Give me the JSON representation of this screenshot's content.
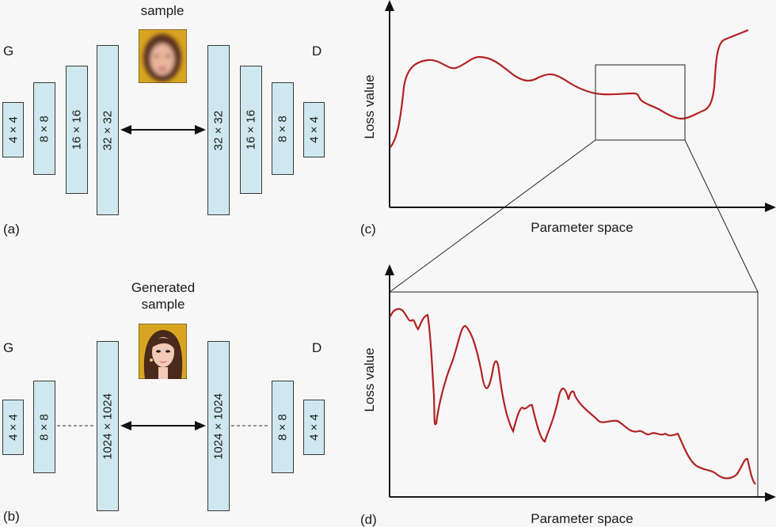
{
  "panel_a": {
    "tag": "(a)",
    "generator": "G",
    "discriminator": "D",
    "sample_label": "sample",
    "generator_blocks": [
      "4 × 4",
      "8 × 8",
      "16 × 16",
      "32 × 32"
    ],
    "discriminator_blocks": [
      "32 × 32",
      "16 × 16",
      "8 × 8",
      "4 × 4"
    ]
  },
  "panel_b": {
    "tag": "(b)",
    "generator": "G",
    "discriminator": "D",
    "sample_label_line1": "Generated",
    "sample_label_line2": "sample",
    "generator_blocks": [
      "4 × 4",
      "8 × 8",
      "1024 × 1024"
    ],
    "discriminator_blocks": [
      "1024 × 1024",
      "8 × 8",
      "4 × 4"
    ]
  },
  "panel_c": {
    "tag": "(c)",
    "ylabel": "Loss value",
    "xlabel": "Parameter space"
  },
  "panel_d": {
    "tag": "(d)",
    "ylabel": "Loss value",
    "xlabel": "Parameter space"
  },
  "colors": {
    "curve": "#b22222",
    "block_fill": "#cfe8ef",
    "face_bg": "#d9a421"
  }
}
